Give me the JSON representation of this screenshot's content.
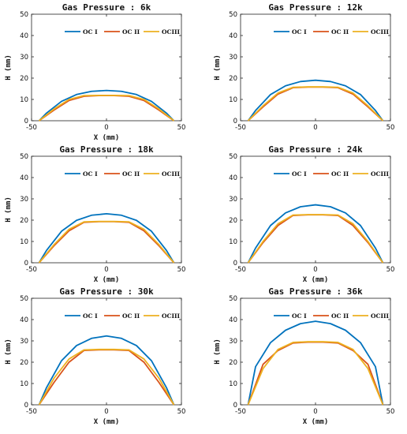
{
  "figure": {
    "series_colors": {
      "OC I": "#0072BD",
      "OC II": "#D95319",
      "OCIII": "#EDB120"
    }
  },
  "chart_data": [
    {
      "type": "line",
      "title": "Gas Pressure : 6k",
      "xlabel": "X (mm)",
      "ylabel": "H (mm)",
      "xlim": [
        -50,
        50
      ],
      "ylim": [
        0,
        50
      ],
      "xticks": [
        -50,
        0,
        50
      ],
      "yticks": [
        0,
        10,
        20,
        30,
        40,
        50
      ],
      "legend_position": "top-center",
      "grid": false,
      "series": [
        {
          "name": "OC I",
          "color": "#0072BD",
          "x": [
            -45,
            -40,
            -30,
            -20,
            -10,
            0,
            10,
            20,
            30,
            40,
            45
          ],
          "y": [
            0,
            3.6,
            9.1,
            12.3,
            13.8,
            14.2,
            13.8,
            12.3,
            9.1,
            3.6,
            0
          ]
        },
        {
          "name": "OC II",
          "color": "#D95319",
          "x": [
            -45,
            -35,
            -25,
            -15,
            -5,
            0,
            5,
            15,
            25,
            35,
            45
          ],
          "y": [
            0,
            5,
            9.5,
            11.5,
            11.8,
            11.8,
            11.8,
            11.5,
            9.5,
            5,
            0
          ]
        },
        {
          "name": "OCIII",
          "color": "#EDB120",
          "x": [
            -45,
            -35,
            -25,
            -15,
            -5,
            0,
            5,
            15,
            25,
            35,
            45
          ],
          "y": [
            0,
            5.5,
            10,
            11.8,
            11.9,
            11.9,
            11.9,
            11.8,
            10,
            5.5,
            0
          ]
        }
      ]
    },
    {
      "type": "line",
      "title": "Gas Pressure : 12k",
      "xlabel": "",
      "ylabel": "H (mm)",
      "xlim": [
        -50,
        50
      ],
      "ylim": [
        0,
        50
      ],
      "xticks": [
        -50,
        0,
        50
      ],
      "yticks": [
        0,
        10,
        20,
        30,
        40,
        50
      ],
      "legend_position": "top-center",
      "grid": false,
      "series": [
        {
          "name": "OC I",
          "color": "#0072BD",
          "x": [
            -45,
            -40,
            -30,
            -20,
            -10,
            0,
            10,
            20,
            30,
            40,
            45
          ],
          "y": [
            0,
            4.8,
            12.3,
            16.4,
            18.4,
            19,
            18.4,
            16.4,
            12.3,
            4.8,
            0
          ]
        },
        {
          "name": "OC II",
          "color": "#D95319",
          "x": [
            -45,
            -35,
            -25,
            -15,
            -5,
            0,
            5,
            15,
            25,
            35,
            45
          ],
          "y": [
            0,
            6.5,
            12.5,
            15.5,
            15.8,
            15.8,
            15.8,
            15.5,
            12.5,
            6.5,
            0
          ]
        },
        {
          "name": "OCIII",
          "color": "#EDB120",
          "x": [
            -45,
            -35,
            -25,
            -15,
            -5,
            0,
            5,
            15,
            25,
            35,
            45
          ],
          "y": [
            0,
            7,
            13,
            15.7,
            15.9,
            15.9,
            15.9,
            15.7,
            13,
            7,
            0
          ]
        }
      ]
    },
    {
      "type": "line",
      "title": "Gas Pressure : 18k",
      "xlabel": "X (mm)",
      "ylabel": "H (mm)",
      "xlim": [
        -50,
        50
      ],
      "ylim": [
        0,
        50
      ],
      "xticks": [
        -50,
        0,
        50
      ],
      "yticks": [
        0,
        10,
        20,
        30,
        40,
        50
      ],
      "legend_position": "top-center",
      "grid": false,
      "series": [
        {
          "name": "OC I",
          "color": "#0072BD",
          "x": [
            -45,
            -40,
            -30,
            -20,
            -10,
            0,
            10,
            20,
            30,
            40,
            45
          ],
          "y": [
            0,
            5.8,
            14.8,
            19.9,
            22.3,
            23,
            22.3,
            19.9,
            14.8,
            5.8,
            0
          ]
        },
        {
          "name": "OC II",
          "color": "#D95319",
          "x": [
            -45,
            -35,
            -25,
            -15,
            -5,
            0,
            5,
            15,
            25,
            35,
            45
          ],
          "y": [
            0,
            8,
            15,
            19,
            19.3,
            19.3,
            19.3,
            19,
            15,
            8,
            0
          ]
        },
        {
          "name": "OCIII",
          "color": "#EDB120",
          "x": [
            -45,
            -35,
            -25,
            -15,
            -5,
            0,
            5,
            15,
            25,
            35,
            45
          ],
          "y": [
            0,
            8.5,
            15.7,
            19.2,
            19.4,
            19.4,
            19.4,
            19.2,
            15.7,
            8.5,
            0
          ]
        }
      ]
    },
    {
      "type": "line",
      "title": "Gas Pressure : 24k",
      "xlabel": "X (mm)",
      "ylabel": "",
      "xlim": [
        -50,
        50
      ],
      "ylim": [
        0,
        50
      ],
      "xticks": [
        -50,
        0,
        50
      ],
      "yticks": [
        0,
        10,
        20,
        30,
        40,
        50
      ],
      "legend_position": "top-center",
      "grid": false,
      "series": [
        {
          "name": "OC I",
          "color": "#0072BD",
          "x": [
            -45,
            -40,
            -30,
            -20,
            -10,
            0,
            10,
            20,
            30,
            40,
            45
          ],
          "y": [
            0,
            6.9,
            17.5,
            23.4,
            26.3,
            27.2,
            26.3,
            23.4,
            17.5,
            6.9,
            0
          ]
        },
        {
          "name": "OC II",
          "color": "#D95319",
          "x": [
            -45,
            -35,
            -25,
            -15,
            -5,
            0,
            5,
            15,
            25,
            35,
            45
          ],
          "y": [
            0,
            9.5,
            17.5,
            22.2,
            22.5,
            22.5,
            22.5,
            22.2,
            17.5,
            9.5,
            0
          ]
        },
        {
          "name": "OCIII",
          "color": "#EDB120",
          "x": [
            -45,
            -35,
            -25,
            -15,
            -5,
            0,
            5,
            15,
            25,
            35,
            45
          ],
          "y": [
            0,
            10,
            18.3,
            22.4,
            22.6,
            22.6,
            22.6,
            22.4,
            18.3,
            10,
            0
          ]
        }
      ]
    },
    {
      "type": "line",
      "title": "Gas Pressure : 30k",
      "xlabel": "X (mm)",
      "ylabel": "H (mm)",
      "xlim": [
        -50,
        50
      ],
      "ylim": [
        0,
        50
      ],
      "xticks": [
        -50,
        0,
        50
      ],
      "yticks": [
        0,
        10,
        20,
        30,
        40,
        50
      ],
      "legend_position": "top-center",
      "grid": false,
      "series": [
        {
          "name": "OC I",
          "color": "#0072BD",
          "x": [
            -45,
            -40,
            -30,
            -20,
            -10,
            0,
            10,
            20,
            30,
            40,
            45
          ],
          "y": [
            0,
            8.1,
            20.7,
            27.8,
            31.2,
            32.3,
            31.2,
            27.8,
            20.7,
            8.1,
            0
          ]
        },
        {
          "name": "OC II",
          "color": "#D95319",
          "x": [
            -45,
            -35,
            -25,
            -15,
            -5,
            0,
            5,
            15,
            25,
            35,
            45
          ],
          "y": [
            0,
            10.5,
            20,
            25.5,
            25.8,
            25.8,
            25.8,
            25.5,
            20,
            10.5,
            0
          ]
        },
        {
          "name": "OCIII",
          "color": "#EDB120",
          "x": [
            -45,
            -35,
            -25,
            -15,
            -5,
            0,
            5,
            15,
            25,
            35,
            45
          ],
          "y": [
            0,
            12.5,
            21.5,
            25.8,
            26,
            26,
            26,
            25.8,
            21.5,
            12.5,
            0
          ]
        }
      ]
    },
    {
      "type": "line",
      "title": "Gas Pressure : 36k",
      "xlabel": "X (mm)",
      "ylabel": "H (mm)",
      "xlim": [
        -50,
        50
      ],
      "ylim": [
        0,
        50
      ],
      "xticks": [
        -50,
        0,
        50
      ],
      "yticks": [
        0,
        10,
        20,
        30,
        40,
        50
      ],
      "legend_position": "top-center",
      "grid": false,
      "series": [
        {
          "name": "OC I",
          "color": "#0072BD",
          "x": [
            -45,
            -40,
            -30,
            -20,
            -10,
            0,
            10,
            20,
            30,
            40,
            45
          ],
          "y": [
            0,
            17.9,
            29.2,
            35,
            38.1,
            39.2,
            38.1,
            35,
            29.2,
            17.9,
            0
          ]
        },
        {
          "name": "OC II",
          "color": "#D95319",
          "x": [
            -45,
            -35,
            -25,
            -15,
            -5,
            0,
            5,
            15,
            25,
            35,
            45
          ],
          "y": [
            0,
            19,
            25.5,
            29,
            29.4,
            29.4,
            29.4,
            29,
            25.5,
            19,
            0
          ]
        },
        {
          "name": "OCIII",
          "color": "#EDB120",
          "x": [
            -45,
            -35,
            -25,
            -15,
            -5,
            0,
            5,
            15,
            25,
            35,
            45
          ],
          "y": [
            0,
            17,
            26,
            29.3,
            29.6,
            29.6,
            29.6,
            29.3,
            26,
            17,
            0
          ]
        }
      ]
    }
  ]
}
